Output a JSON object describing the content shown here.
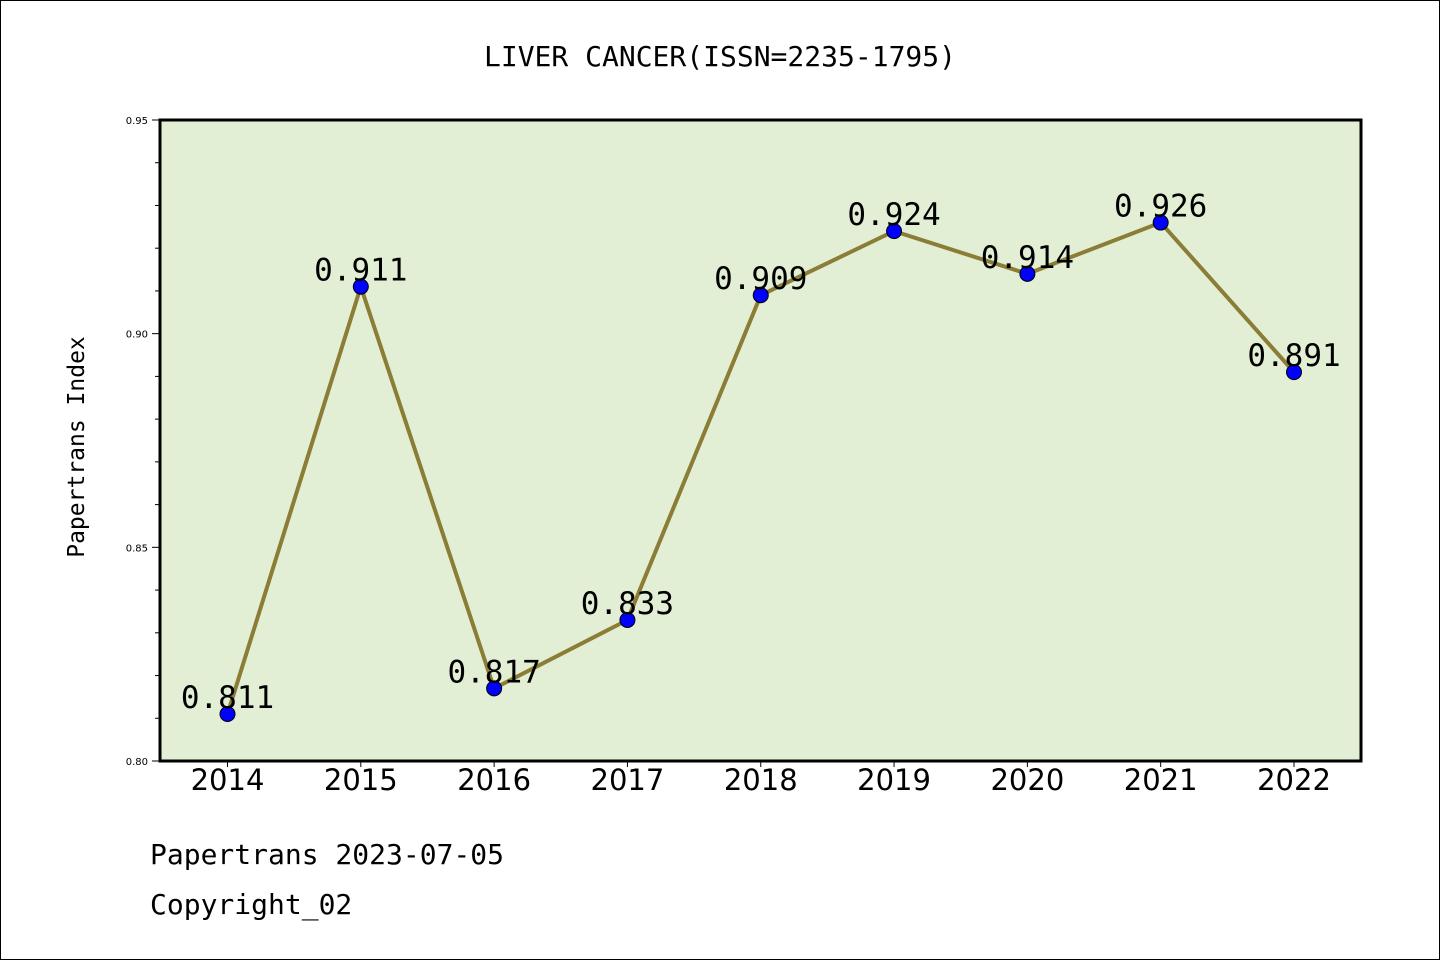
{
  "chart_data": {
    "type": "line",
    "title": "LIVER CANCER(ISSN=2235-1795)",
    "xlabel": "",
    "ylabel": "Papertrans Index",
    "categories": [
      "2014",
      "2015",
      "2016",
      "2017",
      "2018",
      "2019",
      "2020",
      "2021",
      "2022"
    ],
    "series": [
      {
        "values": [
          0.811,
          0.911,
          0.817,
          0.833,
          0.909,
          0.924,
          0.914,
          0.926,
          0.891
        ],
        "labels": [
          "0.811",
          "0.911",
          "0.817",
          "0.833",
          "0.909",
          "0.924",
          "0.914",
          "0.926",
          "0.891"
        ]
      }
    ],
    "ylim": [
      0.8,
      0.95
    ],
    "yticks": [
      "0.80",
      "0.85",
      "0.90",
      "0.95"
    ],
    "grid": false,
    "colors": {
      "plot_background": "#e2efd5",
      "line": "#8b7d35",
      "marker": "#0000ff"
    }
  },
  "footer": {
    "line1": "Papertrans 2023-07-05",
    "line2": "Copyright_02"
  }
}
